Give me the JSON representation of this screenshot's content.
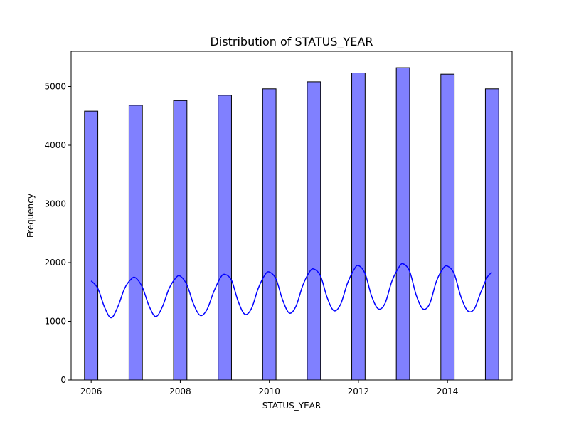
{
  "chart_data": {
    "type": "bar",
    "title": "Distribution of STATUS_YEAR",
    "xlabel": "STATUS_YEAR",
    "ylabel": "Frequency",
    "xlim": [
      2005.55,
      2015.45
    ],
    "ylim": [
      0,
      5600
    ],
    "x_ticks": [
      2006,
      2008,
      2010,
      2012,
      2014
    ],
    "y_ticks": [
      0,
      1000,
      2000,
      3000,
      4000,
      5000
    ],
    "grid": false,
    "bar_color": "#8080ff",
    "bar_edge_color": "#000000",
    "bin_width": 0.3,
    "bars": [
      {
        "x": 2006,
        "value": 4580
      },
      {
        "x": 2007,
        "value": 4680
      },
      {
        "x": 2008,
        "value": 4760
      },
      {
        "x": 2009,
        "value": 4850
      },
      {
        "x": 2010,
        "value": 4960
      },
      {
        "x": 2011,
        "value": 5080
      },
      {
        "x": 2012,
        "value": 5230
      },
      {
        "x": 2013,
        "value": 5320
      },
      {
        "x": 2014,
        "value": 5210
      },
      {
        "x": 2015,
        "value": 4960
      }
    ],
    "kde": {
      "color": "#0000ff",
      "x": [
        2006.0,
        2006.15,
        2006.3,
        2006.45,
        2006.6,
        2006.75,
        2006.9,
        2007.0,
        2007.15,
        2007.3,
        2007.45,
        2007.6,
        2007.75,
        2007.9,
        2008.0,
        2008.15,
        2008.3,
        2008.45,
        2008.6,
        2008.75,
        2008.9,
        2009.0,
        2009.15,
        2009.3,
        2009.45,
        2009.6,
        2009.75,
        2009.9,
        2010.0,
        2010.15,
        2010.3,
        2010.45,
        2010.6,
        2010.75,
        2010.9,
        2011.0,
        2011.15,
        2011.3,
        2011.45,
        2011.6,
        2011.75,
        2011.9,
        2012.0,
        2012.15,
        2012.3,
        2012.45,
        2012.6,
        2012.75,
        2012.9,
        2013.0,
        2013.15,
        2013.3,
        2013.45,
        2013.6,
        2013.75,
        2013.9,
        2014.0,
        2014.15,
        2014.3,
        2014.45,
        2014.6,
        2014.75,
        2014.9,
        2015.0
      ],
      "y": [
        1690,
        1560,
        1240,
        1060,
        1250,
        1560,
        1720,
        1740,
        1580,
        1260,
        1080,
        1250,
        1560,
        1740,
        1770,
        1620,
        1290,
        1100,
        1200,
        1500,
        1740,
        1800,
        1700,
        1340,
        1120,
        1220,
        1560,
        1790,
        1840,
        1720,
        1360,
        1140,
        1260,
        1610,
        1840,
        1890,
        1770,
        1400,
        1180,
        1290,
        1640,
        1880,
        1950,
        1810,
        1420,
        1210,
        1310,
        1680,
        1910,
        1980,
        1850,
        1440,
        1210,
        1300,
        1680,
        1900,
        1940,
        1810,
        1420,
        1180,
        1210,
        1500,
        1760,
        1830
      ]
    }
  }
}
